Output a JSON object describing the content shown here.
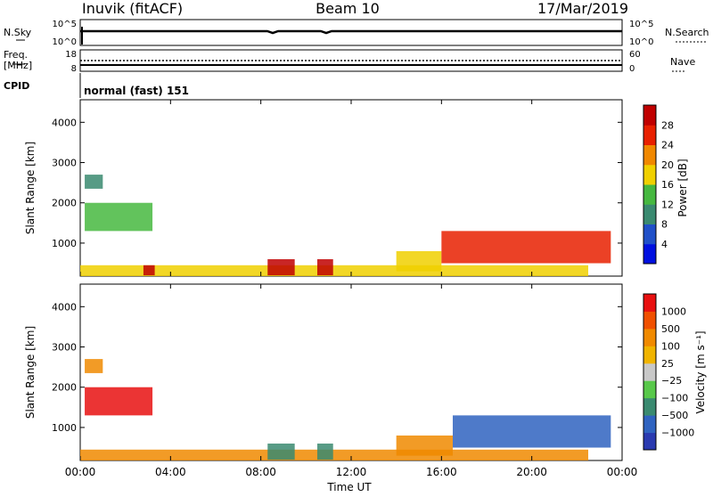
{
  "header": {
    "station": "Inuvik (fitACF)",
    "beam": "Beam 10",
    "date": "17/Mar/2019"
  },
  "status_panels": {
    "nsky": {
      "left_label": "N.Sky",
      "left_ticks": [
        "10^5",
        "10^0"
      ],
      "right_label": "N.Search",
      "right_ticks": [
        "10^5",
        "10^0"
      ]
    },
    "freq": {
      "left_label_line1": "Freq.",
      "left_label_line2": "[MHz]",
      "left_ticks": [
        "18",
        "8"
      ],
      "right_label": "Nave",
      "right_ticks": [
        "60",
        "0"
      ]
    },
    "cpid": {
      "label": "CPID",
      "text": "normal (fast) 151"
    }
  },
  "chart_data": [
    {
      "type": "heatmap",
      "name": "power",
      "title": "",
      "xlabel": "",
      "ylabel": "Slant Range [km]",
      "x_ticks": [
        "00:00",
        "04:00",
        "08:00",
        "12:00",
        "16:00",
        "20:00",
        "00:00"
      ],
      "xlim": [
        0,
        24
      ],
      "y_ticks": [
        1000,
        2000,
        3000,
        4000
      ],
      "ylim": [
        180,
        4560
      ],
      "colorbar": {
        "label": "Power [dB]",
        "ticks": [
          4,
          8,
          12,
          16,
          20,
          24,
          28
        ],
        "range": [
          0,
          32
        ],
        "colors": [
          "#0010e0",
          "#2050c8",
          "#3a8a70",
          "#46b840",
          "#f0d000",
          "#f08800",
          "#e82000",
          "#c00000"
        ]
      },
      "regions": [
        {
          "x": [
            0.2,
            1.0
          ],
          "y": [
            2350,
            2700
          ],
          "level": 0.35
        },
        {
          "x": [
            0.2,
            3.2
          ],
          "y": [
            1300,
            2000
          ],
          "level": 0.42
        },
        {
          "x": [
            0,
            22.5
          ],
          "y": [
            180,
            450
          ],
          "level": 0.55
        },
        {
          "x": [
            2.8,
            3.3
          ],
          "y": [
            200,
            450
          ],
          "level": 0.95
        },
        {
          "x": [
            8.3,
            9.5
          ],
          "y": [
            200,
            600
          ],
          "level": 0.9
        },
        {
          "x": [
            10.5,
            11.2
          ],
          "y": [
            200,
            600
          ],
          "level": 0.95
        },
        {
          "x": [
            14.0,
            16.0
          ],
          "y": [
            300,
            800
          ],
          "level": 0.6
        },
        {
          "x": [
            16.0,
            23.5
          ],
          "y": [
            500,
            1300
          ],
          "level": 0.75
        }
      ]
    },
    {
      "type": "heatmap",
      "name": "velocity",
      "title": "",
      "xlabel": "Time UT",
      "ylabel": "Slant Range [km]",
      "x_ticks": [
        "00:00",
        "04:00",
        "08:00",
        "12:00",
        "16:00",
        "20:00",
        "00:00"
      ],
      "xlim": [
        0,
        24
      ],
      "y_ticks": [
        1000,
        2000,
        3000,
        4000
      ],
      "ylim": [
        180,
        4560
      ],
      "colorbar": {
        "label": "Velocity [m s⁻¹]",
        "ticks": [
          "1000",
          "500",
          "100",
          "25",
          "−25",
          "−100",
          "−500",
          "−1000"
        ],
        "colors": [
          "#2a3ab0",
          "#2f63c0",
          "#3a8a70",
          "#58c84a",
          "#c8c8c8",
          "#f0b400",
          "#f08a00",
          "#f05000",
          "#e81010"
        ]
      },
      "regions": [
        {
          "x": [
            0.2,
            1.0
          ],
          "y": [
            2350,
            2700
          ],
          "level": -0.55
        },
        {
          "x": [
            0.2,
            3.2
          ],
          "y": [
            1300,
            2000
          ],
          "level": -0.8
        },
        {
          "x": [
            0,
            22.5
          ],
          "y": [
            180,
            450
          ],
          "level": -0.35
        },
        {
          "x": [
            8.3,
            9.5
          ],
          "y": [
            200,
            600
          ],
          "level": 0.4
        },
        {
          "x": [
            10.5,
            11.2
          ],
          "y": [
            200,
            600
          ],
          "level": 0.45
        },
        {
          "x": [
            14.0,
            16.5
          ],
          "y": [
            300,
            800
          ],
          "level": -0.4
        },
        {
          "x": [
            16.5,
            23.5
          ],
          "y": [
            500,
            1300
          ],
          "level": 0.75
        }
      ]
    }
  ]
}
